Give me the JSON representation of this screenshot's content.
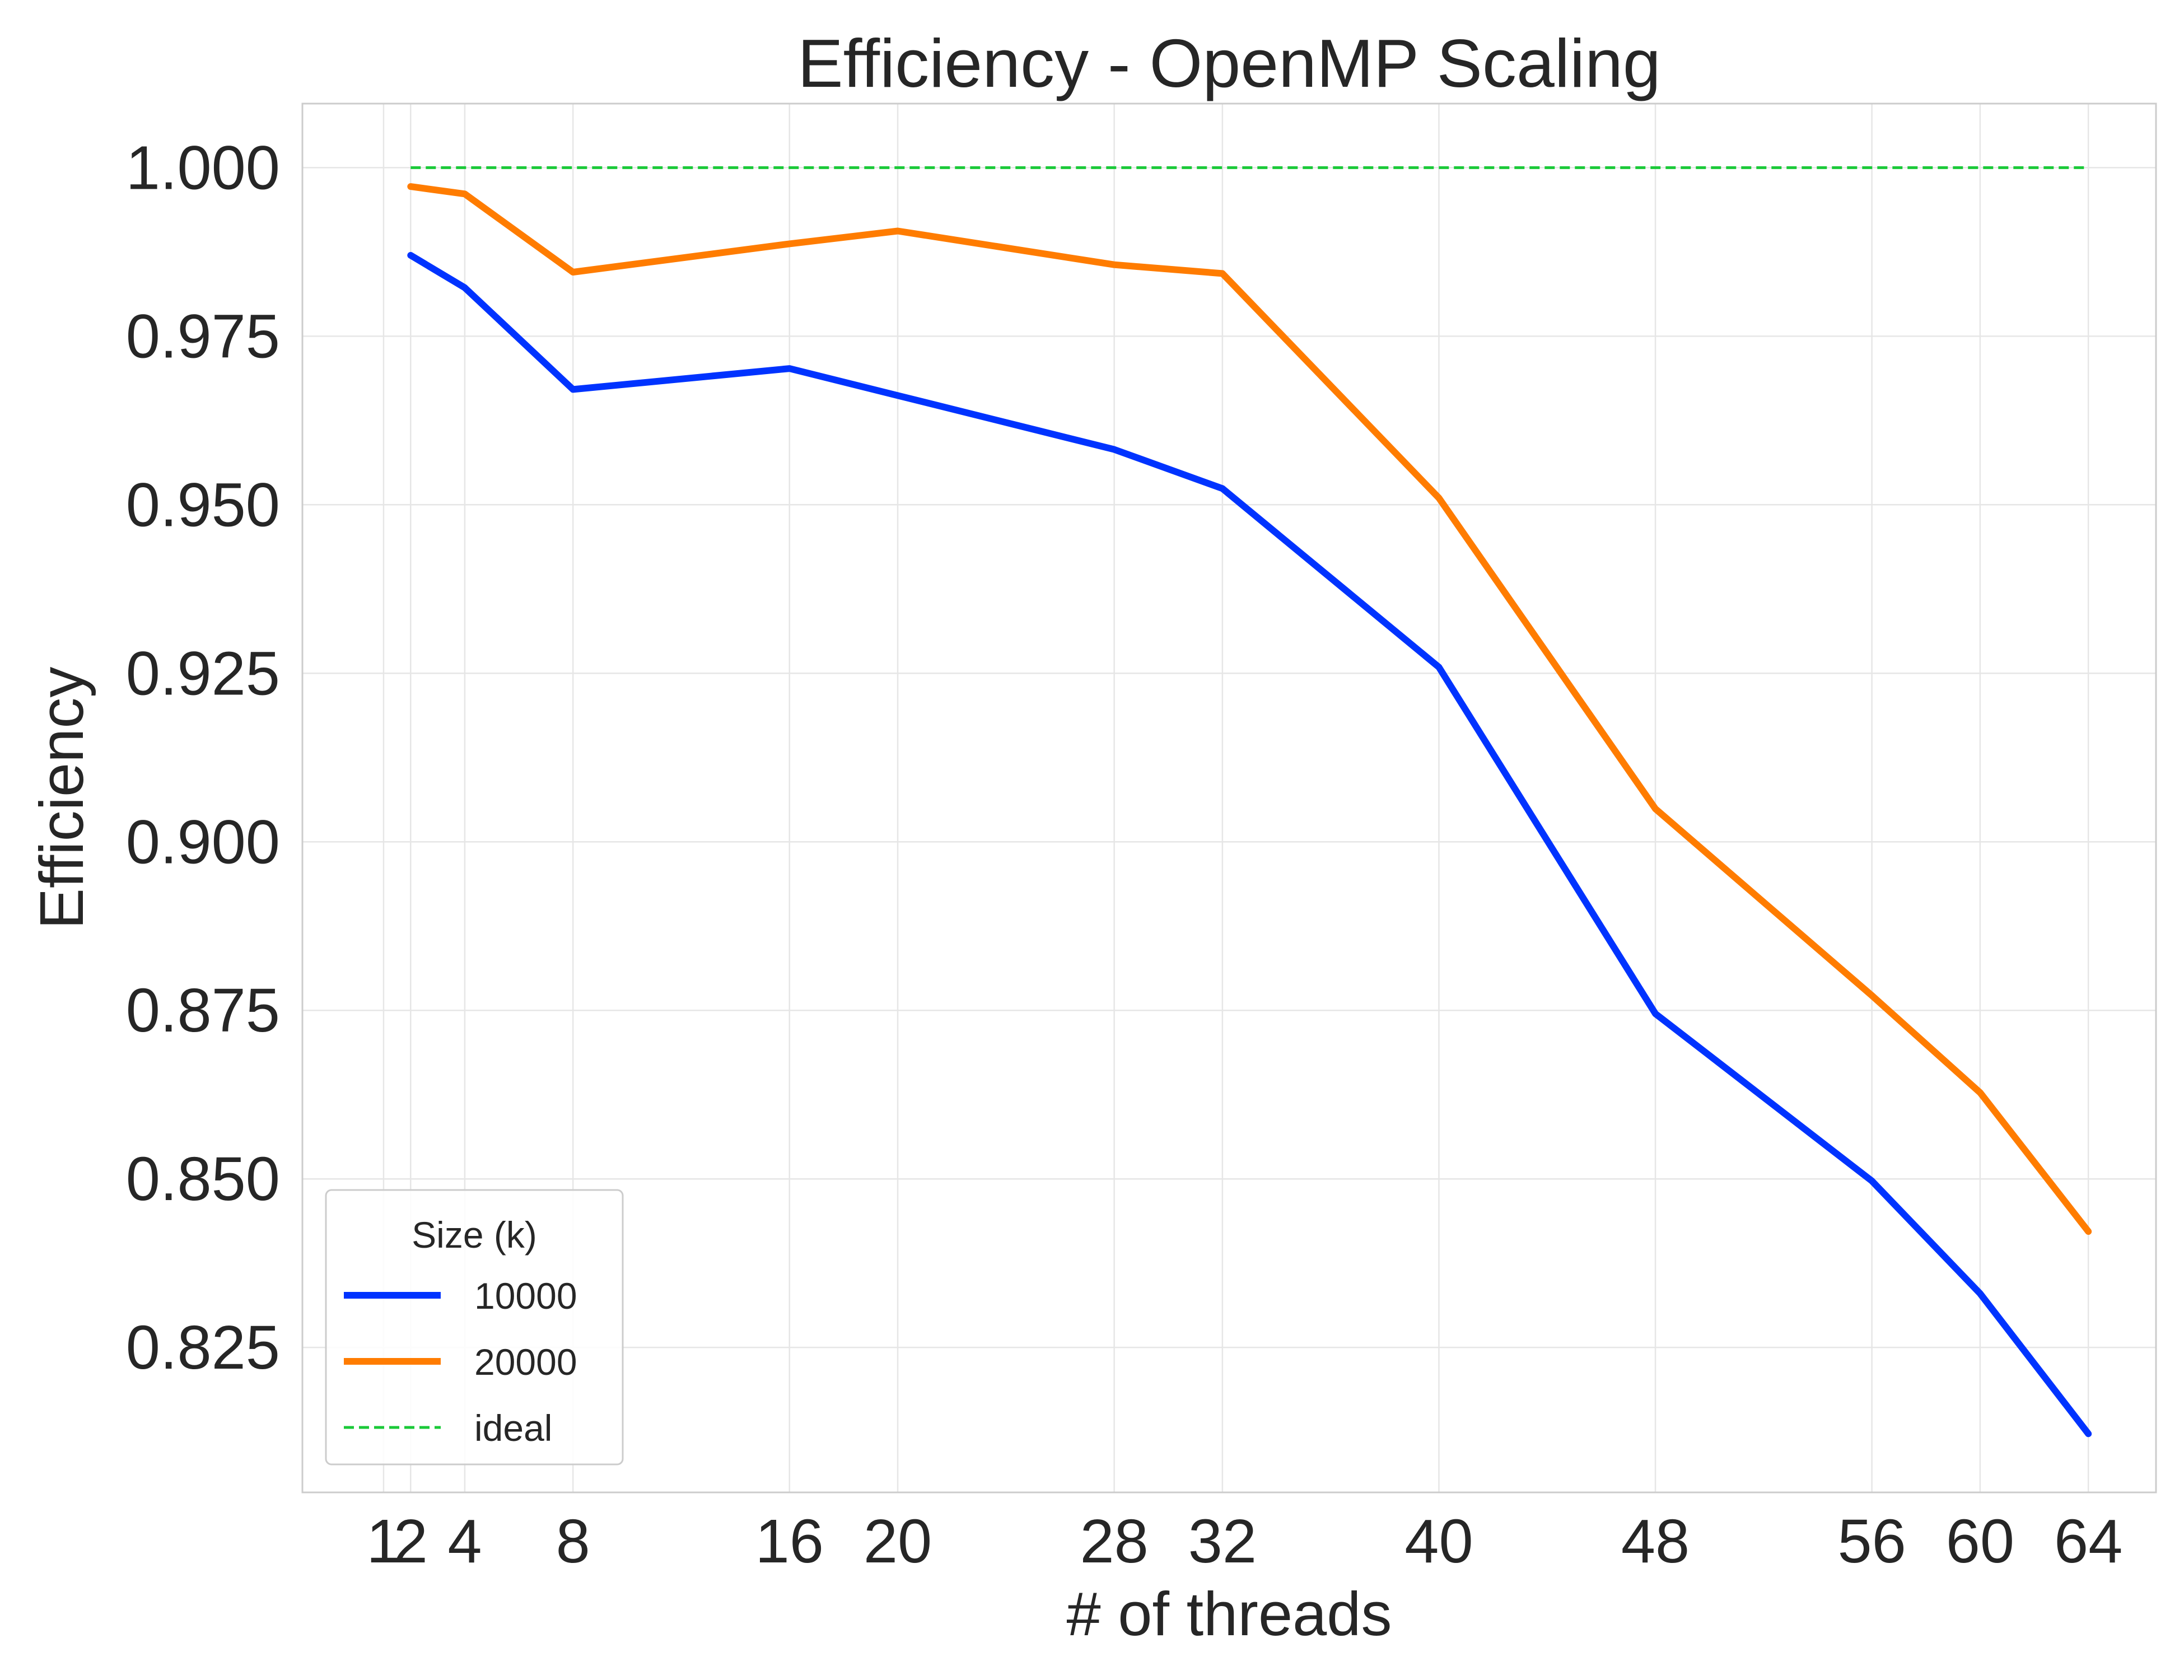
{
  "chart_data": {
    "type": "line",
    "title": "Efficiency - OpenMP Scaling",
    "xlabel": "# of threads",
    "ylabel": "Efficiency",
    "x": [
      1,
      2,
      4,
      8,
      16,
      20,
      28,
      32,
      40,
      48,
      56,
      60,
      64
    ],
    "xticks": [
      "1",
      "2",
      "4",
      "8",
      "16",
      "20",
      "28",
      "32",
      "40",
      "48",
      "56",
      "60",
      "64"
    ],
    "yticks": [
      "0.825",
      "0.850",
      "0.875",
      "0.900",
      "0.925",
      "0.950",
      "0.975",
      "1.000"
    ],
    "xlim": [
      -2,
      66.5
    ],
    "ylim": [
      0.8035,
      1.0095
    ],
    "grid": true,
    "legend": {
      "title": "Size (k)",
      "position": "lower-left"
    },
    "series": [
      {
        "name": "10000",
        "color": "#0033ff",
        "style": "solid",
        "x": [
          2,
          4,
          8,
          16,
          20,
          28,
          32,
          40,
          48,
          56,
          60,
          64
        ],
        "values": [
          0.987,
          0.9822,
          0.9671,
          0.9702,
          0.9662,
          0.9582,
          0.9524,
          0.9259,
          0.8745,
          0.8497,
          0.833,
          0.8122
        ]
      },
      {
        "name": "20000",
        "color": "#ff7c00",
        "style": "solid",
        "x": [
          2,
          4,
          8,
          16,
          20,
          28,
          32,
          40,
          48,
          56,
          60,
          64
        ],
        "values": [
          0.9972,
          0.9961,
          0.9845,
          0.9887,
          0.9906,
          0.9856,
          0.9843,
          0.951,
          0.9049,
          0.8772,
          0.8628,
          0.8422
        ]
      },
      {
        "name": "ideal",
        "color": "#1ac938",
        "style": "dashed",
        "x": [
          2,
          64
        ],
        "values": [
          1.0,
          1.0
        ]
      }
    ]
  }
}
